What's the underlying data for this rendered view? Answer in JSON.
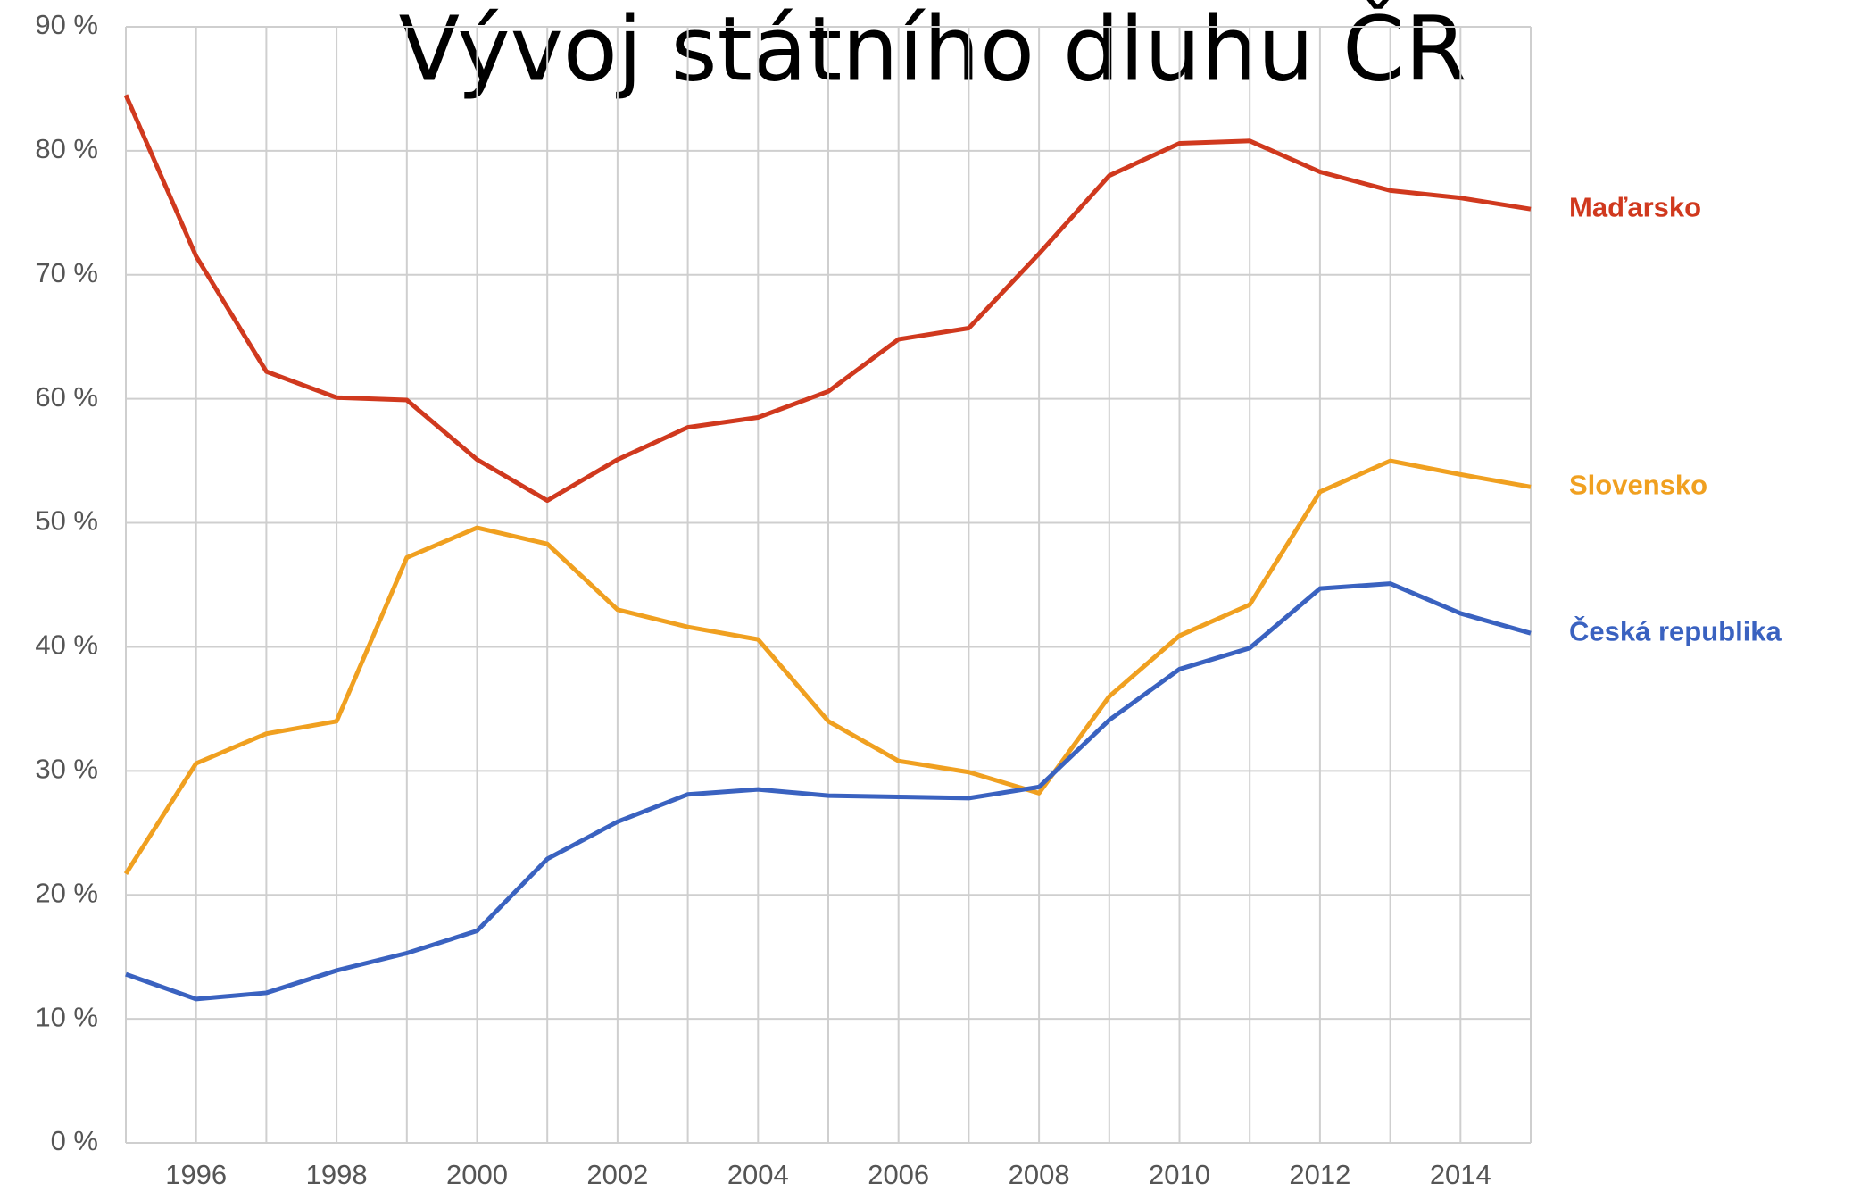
{
  "chart_data": {
    "type": "line",
    "title": "Vývoj státního dluhu ČR",
    "x": [
      1995,
      1996,
      1997,
      1998,
      1999,
      2000,
      2001,
      2002,
      2003,
      2004,
      2005,
      2006,
      2007,
      2008,
      2009,
      2010,
      2011,
      2012,
      2013,
      2014,
      2015
    ],
    "xlim": [
      1995,
      2015
    ],
    "xticks": [
      1996,
      1998,
      2000,
      2002,
      2004,
      2006,
      2008,
      2010,
      2012,
      2014
    ],
    "ylim": [
      0,
      90
    ],
    "yticks": [
      {
        "value": 0,
        "label": "0 %"
      },
      {
        "value": 10,
        "label": "10 %"
      },
      {
        "value": 20,
        "label": "20 %"
      },
      {
        "value": 30,
        "label": "30 %"
      },
      {
        "value": 40,
        "label": "40 %"
      },
      {
        "value": 50,
        "label": "50 %"
      },
      {
        "value": 60,
        "label": "60 %"
      },
      {
        "value": 70,
        "label": "70 %"
      },
      {
        "value": 80,
        "label": "80 %"
      },
      {
        "value": 90,
        "label": "90 %"
      }
    ],
    "grid": true,
    "series": [
      {
        "name": "Maďarsko",
        "color": "#d0391e",
        "values": [
          84.5,
          71.5,
          62.2,
          60.1,
          59.9,
          55.1,
          51.8,
          55.1,
          57.7,
          58.5,
          60.6,
          64.8,
          65.7,
          71.7,
          78.0,
          80.6,
          80.8,
          78.3,
          76.8,
          76.2,
          75.3
        ]
      },
      {
        "name": "Slovensko",
        "color": "#f0a020",
        "values": [
          21.7,
          30.6,
          33.0,
          34.0,
          47.2,
          49.6,
          48.3,
          43.0,
          41.6,
          40.6,
          34.0,
          30.8,
          29.9,
          28.2,
          36.0,
          40.9,
          43.4,
          52.5,
          55.0,
          53.9,
          52.9
        ]
      },
      {
        "name": "Česká republika",
        "color": "#3a62c0",
        "values": [
          13.6,
          11.6,
          12.1,
          13.9,
          15.3,
          17.1,
          22.9,
          25.9,
          28.1,
          28.5,
          28.0,
          27.9,
          27.8,
          28.7,
          34.1,
          38.2,
          39.9,
          44.7,
          45.1,
          42.7,
          41.1
        ]
      }
    ]
  }
}
